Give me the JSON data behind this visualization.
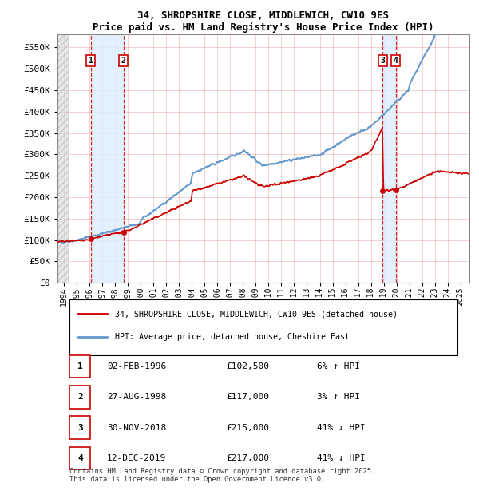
{
  "title": "34, SHROPSHIRE CLOSE, MIDDLEWICH, CW10 9ES",
  "subtitle": "Price paid vs. HM Land Registry's House Price Index (HPI)",
  "footer": "Contains HM Land Registry data © Crown copyright and database right 2025.\nThis data is licensed under the Open Government Licence v3.0.",
  "legend_entry1": "34, SHROPSHIRE CLOSE, MIDDLEWICH, CW10 9ES (detached house)",
  "legend_entry2": "HPI: Average price, detached house, Cheshire East",
  "transactions": [
    {
      "num": 1,
      "date": "02-FEB-1996",
      "price": 102500,
      "pct": "6%",
      "dir": "↑",
      "year_x": 1996.09
    },
    {
      "num": 2,
      "date": "27-AUG-1998",
      "price": 117000,
      "pct": "3%",
      "dir": "↑",
      "year_x": 1998.65
    },
    {
      "num": 3,
      "date": "30-NOV-2018",
      "price": 215000,
      "pct": "41%",
      "dir": "↓",
      "year_x": 2018.92
    },
    {
      "num": 4,
      "date": "12-DEC-2019",
      "price": 217000,
      "pct": "41%",
      "dir": "↓",
      "year_x": 2019.95
    }
  ],
  "hpi_color": "#6699cc",
  "price_color": "#cc0000",
  "vline_color": "#cc0000",
  "dot_color": "#cc0000",
  "band_color": "#ddeeff",
  "ylim": [
    0,
    580000
  ],
  "yticks": [
    0,
    50000,
    100000,
    150000,
    200000,
    250000,
    300000,
    350000,
    400000,
    450000,
    500000,
    550000
  ],
  "xlim_start": 1993.5,
  "xlim_end": 2025.7,
  "chart_bg": "#ffffff",
  "grid_color": "#cc0000",
  "hatch_end": 1994.3
}
